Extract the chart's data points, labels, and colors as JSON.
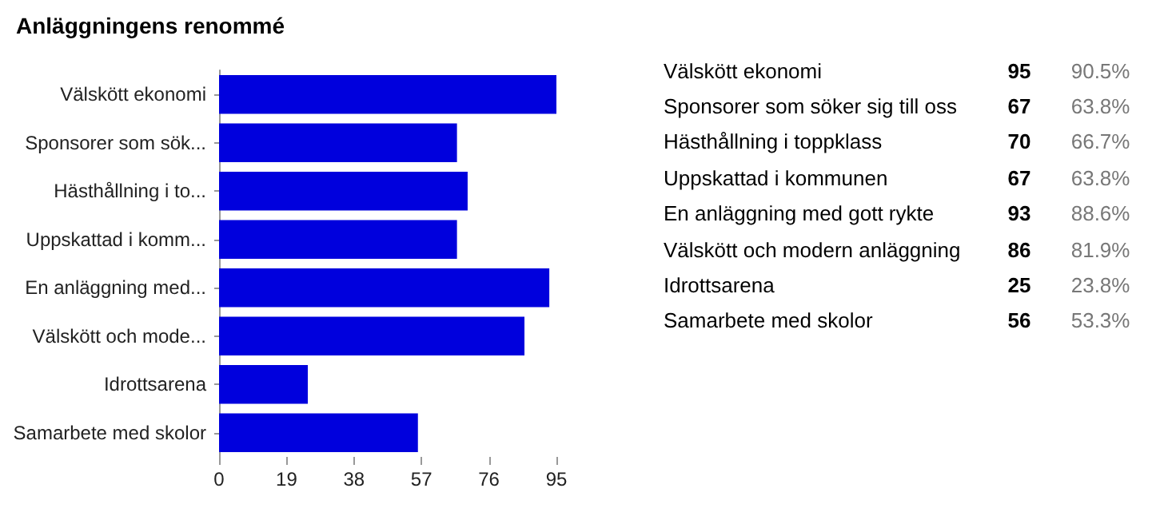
{
  "chart_data": [
    {
      "type": "bar",
      "orientation": "horizontal",
      "title": "Anläggningens renommé",
      "categories": [
        "Välskött ekonomi",
        "Sponsorer som sök...",
        "Hästhållning i to...",
        "Uppskattad i komm...",
        "En anläggning med...",
        "Välskött och mode...",
        "Idrottsarena",
        "Samarbete med skolor"
      ],
      "values": [
        95,
        67,
        70,
        67,
        93,
        86,
        25,
        56
      ],
      "color": "#0000dd",
      "xlim": [
        0,
        95
      ],
      "xticks": [
        0,
        19,
        38,
        57,
        76,
        95
      ],
      "grid": false
    },
    {
      "type": "other",
      "categories": [
        "Välskött ekonomi",
        "Sponsorer som söker sig till oss",
        "Hästhållning i toppklass",
        "Uppskattad i kommunen",
        "En anläggning med gott rykte",
        "Välskött och modern anläggning",
        "Idrottsarena",
        "Samarbete med skolor"
      ],
      "series": [
        {
          "values": [
            95,
            67,
            70,
            67,
            93,
            86,
            25,
            56
          ]
        },
        {
          "values": [
            90.5,
            63.8,
            66.7,
            63.8,
            88.6,
            81.9,
            23.8,
            53.3
          ],
          "value_labels": [
            "90.5%",
            "63.8%",
            "66.7%",
            "63.8%",
            "88.6%",
            "81.9%",
            "23.8%",
            "53.3%"
          ]
        }
      ],
      "data_labels": true
    }
  ]
}
